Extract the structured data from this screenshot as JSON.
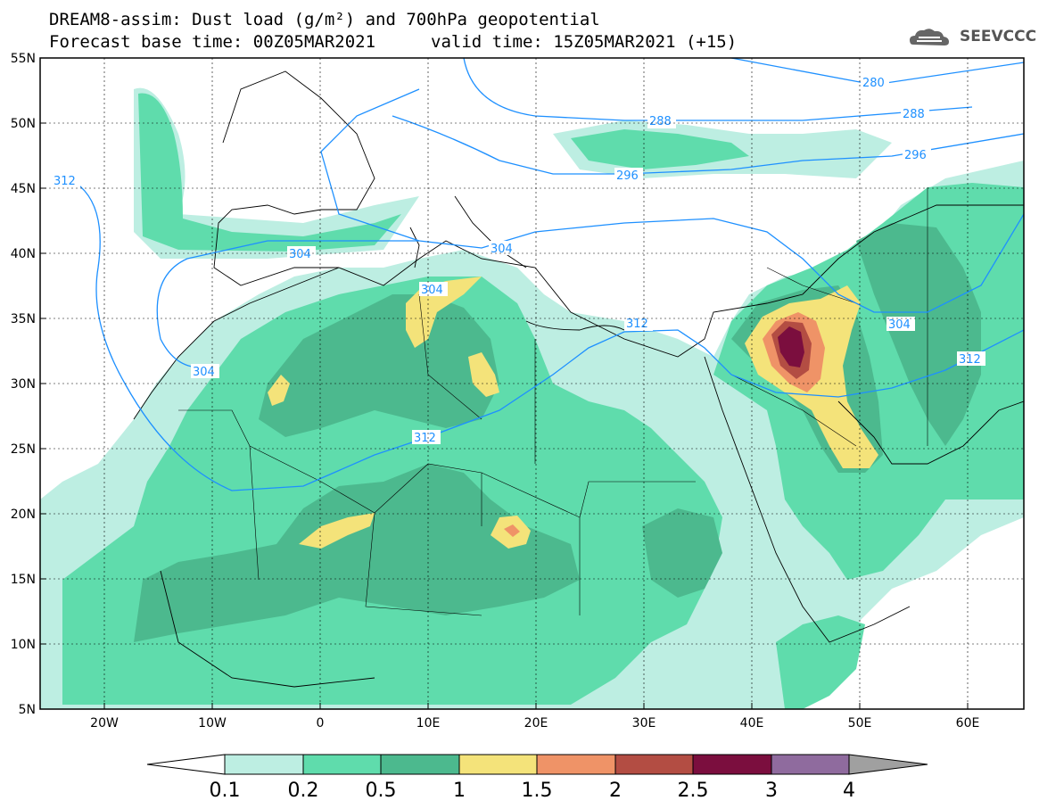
{
  "header": {
    "line1": "DREAM8-assim: Dust load (g/m²) and 700hPa geopotential",
    "line2": "Forecast base time: 00Z05MAR2021",
    "line3": "valid time: 15Z05MAR2021 (+15)"
  },
  "logo": {
    "text": "SEEVCCC",
    "icon": "cloud-logo-icon"
  },
  "map": {
    "lat_labels": [
      "55N",
      "50N",
      "45N",
      "40N",
      "35N",
      "30N",
      "25N",
      "20N",
      "15N",
      "10N",
      "5N"
    ],
    "lon_labels": [
      "20W",
      "10W",
      "0",
      "10E",
      "20E",
      "30E",
      "40E",
      "50E",
      "60E"
    ],
    "contour_labels": [
      "280",
      "288",
      "288",
      "296",
      "296",
      "304",
      "304",
      "304",
      "304",
      "304",
      "312",
      "312",
      "312",
      "312"
    ]
  },
  "colorbar": {
    "labels": [
      "0.1",
      "0.2",
      "0.5",
      "1",
      "1.5",
      "2",
      "2.5",
      "3",
      "4"
    ],
    "colors": [
      "#ffffff",
      "#bdeee2",
      "#5fdcac",
      "#4cb98e",
      "#f4e37a",
      "#ef9367",
      "#b34d43",
      "#7b0e3e",
      "#8f6b9e",
      "#a0a0a0"
    ]
  }
}
